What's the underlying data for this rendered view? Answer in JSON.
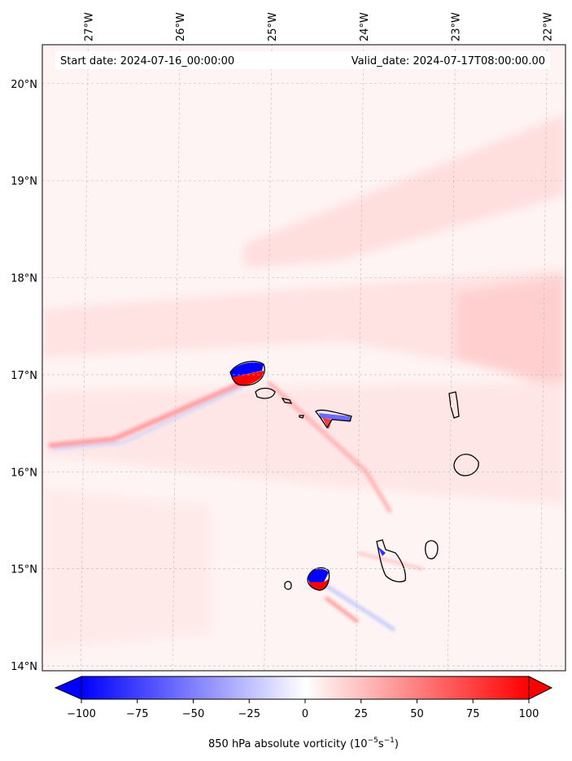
{
  "chart_data": {
    "type": "heatmap",
    "header": {
      "start_date": "Start date: 2024-07-16_00:00:00",
      "valid_date": "Valid_date: 2024-07-17T08:00:00.00"
    },
    "x_ticks": [
      "27°W",
      "26°W",
      "25°W",
      "24°W",
      "23°W",
      "22°W"
    ],
    "x_tick_values": [
      -27,
      -26,
      -25,
      -24,
      -23,
      -22
    ],
    "y_ticks": [
      "14°N",
      "15°N",
      "16°N",
      "17°N",
      "18°N",
      "19°N",
      "20°N"
    ],
    "y_tick_values": [
      14,
      15,
      16,
      17,
      18,
      19,
      20
    ],
    "xlim": [
      -27.5,
      -21.8
    ],
    "ylim": [
      13.95,
      20.4
    ],
    "grid": true,
    "colorbar": {
      "label": "850 hPa absolute vorticity (10",
      "label_exp1": "−5",
      "label_mid": "s",
      "label_exp2": "−1",
      "label_end": ")",
      "ticks": [
        "−100",
        "−75",
        "−50",
        "−25",
        "0",
        "25",
        "50",
        "75",
        "100"
      ],
      "tick_values": [
        -100,
        -75,
        -50,
        -25,
        0,
        25,
        50,
        75,
        100
      ],
      "range": [
        -100,
        100
      ],
      "colormap": "bwr",
      "extend": "both"
    },
    "colors": {
      "negative": "#0000ff",
      "zero": "#ffffff",
      "positive": "#ff0000",
      "coast": "#000000"
    }
  }
}
